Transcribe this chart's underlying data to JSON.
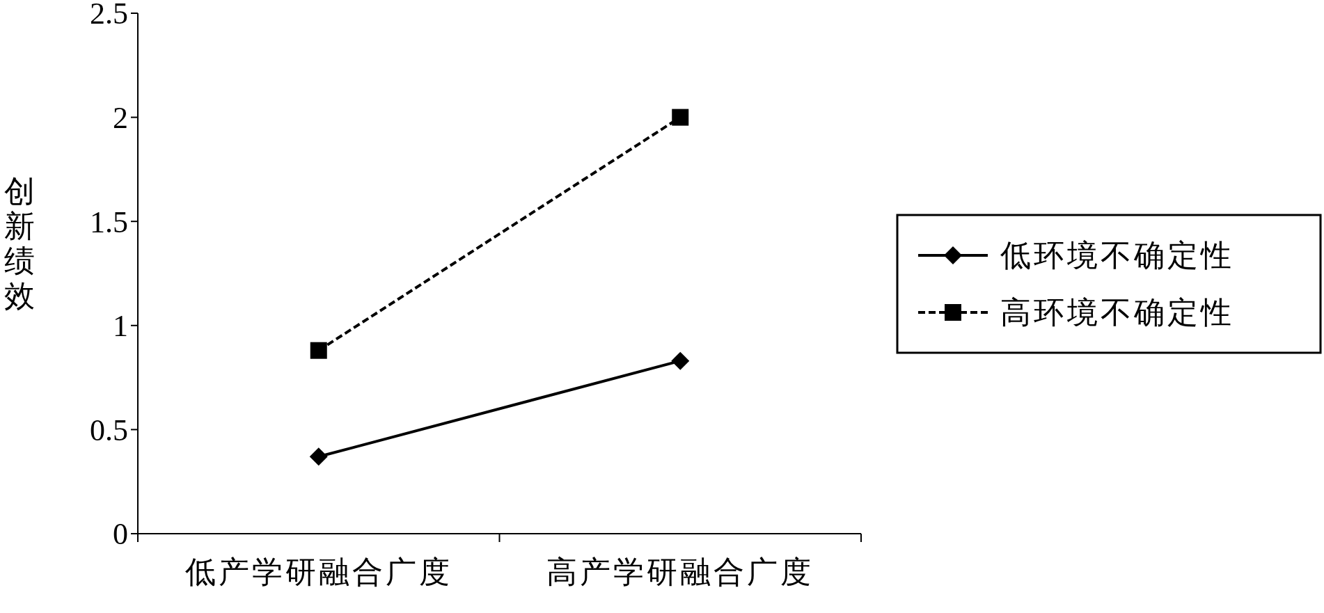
{
  "chart_data": {
    "type": "line",
    "ylabel": "创新绩效",
    "categories": [
      "低产学研融合广度",
      "高产学研融合广度"
    ],
    "ylim": [
      0,
      2.5
    ],
    "yticks": [
      0,
      0.5,
      1,
      1.5,
      2,
      2.5
    ],
    "legend": "right",
    "grid": false,
    "series": [
      {
        "name": "低环境不确定性",
        "color": "#000000",
        "values": [
          0.37,
          0.83
        ],
        "marker": "diamond",
        "line_style": "solid"
      },
      {
        "name": "高环境不确定性",
        "color": "#000000",
        "values": [
          0.88,
          2.0
        ],
        "marker": "square",
        "line_style": "dashed"
      }
    ]
  }
}
